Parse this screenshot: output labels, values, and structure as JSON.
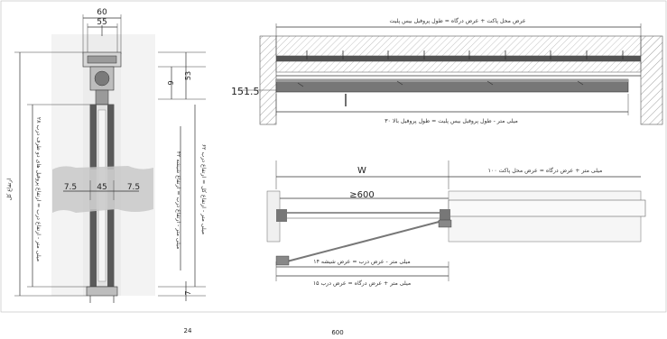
{
  "left_view": {
    "width_outer": "60",
    "width_inner": "55",
    "dim_9": "9",
    "dim_53": "53",
    "dim_7": "7",
    "gap_left": "7.5",
    "panel_width": "45",
    "gap_right": "7.5",
    "label_total_height": "ارتفاع کل",
    "label_profile_height": "۲۸ میلی متر - ارتفاع درب = ارتفاع پروفیل های دو طرف درب",
    "label_glass_height": "۴۲ میلی متر - ارتفاع درب = ارتفاع شیشه",
    "label_door_height": "۶۲ میلی متر - ارتفاع کل = ارتفاع درب"
  },
  "top_view": {
    "label_top": "عرض محل پاکت + عرض درگاه = طول پروفیل بیس پلیت",
    "dim_151_5": "151.5",
    "label_bottom": "۳۰ میلی متر - طول پروفیل بیس پلیت = طول پروفیل بالا"
  },
  "plan_view": {
    "dim_w": "W",
    "dim_min": "≥600",
    "label_right": "۱۰۰ میلی متر + عرض درگاه = عرض محل پاکت",
    "label_glass_width": "۱۴ میلی متر - عرض درب = عرض شیشه",
    "label_door_width": "۱۵ میلی متر + عرض درگاه = عرض درب"
  },
  "footer": {
    "left_number": "24",
    "center_number": "600"
  },
  "colors": {
    "line": "#333333",
    "hatch": "#8a8a8a",
    "panel_fill": "#e6e6e6",
    "profile_dark": "#555555",
    "grey_patch": "#c8c8c8"
  }
}
